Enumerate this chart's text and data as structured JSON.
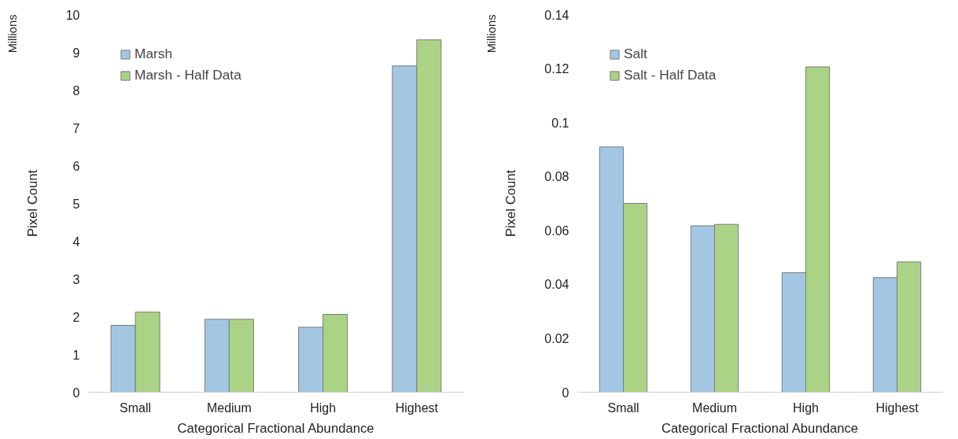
{
  "chart_data": [
    {
      "type": "bar",
      "xlabel": "Categorical Fractional Abundance",
      "ylabel": "Pixel Count",
      "annotations": [
        "Millions"
      ],
      "categories": [
        "Small",
        "Medium",
        "High",
        "Highest"
      ],
      "series": [
        {
          "name": "Marsh",
          "color": "#a3c7e2",
          "values": [
            1.77,
            1.93,
            1.72,
            8.64
          ]
        },
        {
          "name": "Marsh - Half Data",
          "color": "#aad386",
          "values": [
            2.12,
            1.93,
            2.06,
            9.33
          ]
        }
      ],
      "ylim": [
        0,
        10
      ],
      "yticks": [
        0,
        1,
        2,
        3,
        4,
        5,
        6,
        7,
        8,
        9,
        10
      ],
      "grid": false,
      "legend": "top left"
    },
    {
      "type": "bar",
      "xlabel": "Categorical Fractional Abundance",
      "ylabel": "Pixel Count",
      "annotations": [
        "Millions"
      ],
      "categories": [
        "Small",
        "Medium",
        "High",
        "Highest"
      ],
      "series": [
        {
          "name": "Salt",
          "color": "#a3c7e2",
          "values": [
            0.0909,
            0.0617,
            0.0443,
            0.0425
          ]
        },
        {
          "name": "Salt - Half Data",
          "color": "#aad386",
          "values": [
            0.07,
            0.0622,
            0.1206,
            0.0483
          ]
        }
      ],
      "ylim": [
        0,
        0.14
      ],
      "yticks": [
        0,
        0.02,
        0.04,
        0.06,
        0.08,
        0.1,
        0.12,
        0.14
      ],
      "grid": false,
      "legend": "top left"
    }
  ]
}
